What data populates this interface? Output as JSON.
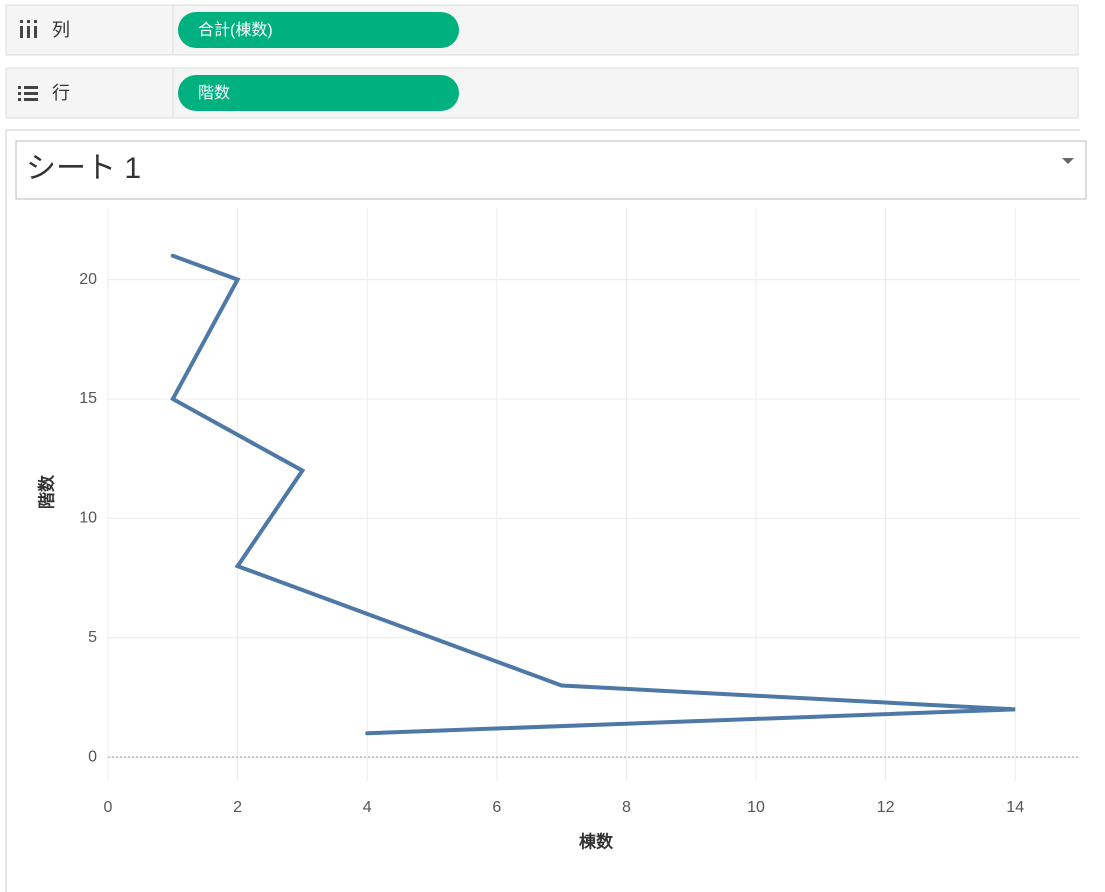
{
  "shelves": {
    "columns": {
      "label": "列",
      "pill": "合計(棟数)"
    },
    "rows": {
      "label": "行",
      "pill": "階数"
    }
  },
  "chart_data": {
    "type": "line",
    "title": "シート 1",
    "x_label": "棟数",
    "y_label": "階数",
    "x": [
      1,
      2,
      1,
      3,
      2,
      7,
      14,
      4
    ],
    "values": [
      21,
      20,
      15,
      12,
      8,
      3,
      2,
      1
    ],
    "color": "#4e79a7",
    "xlim": [
      0,
      15
    ],
    "ylim": [
      -1,
      23
    ],
    "xticks": [
      0,
      2,
      4,
      6,
      8,
      10,
      12,
      14
    ],
    "yticks": [
      0,
      5,
      10,
      15,
      20
    ],
    "grid": true
  }
}
